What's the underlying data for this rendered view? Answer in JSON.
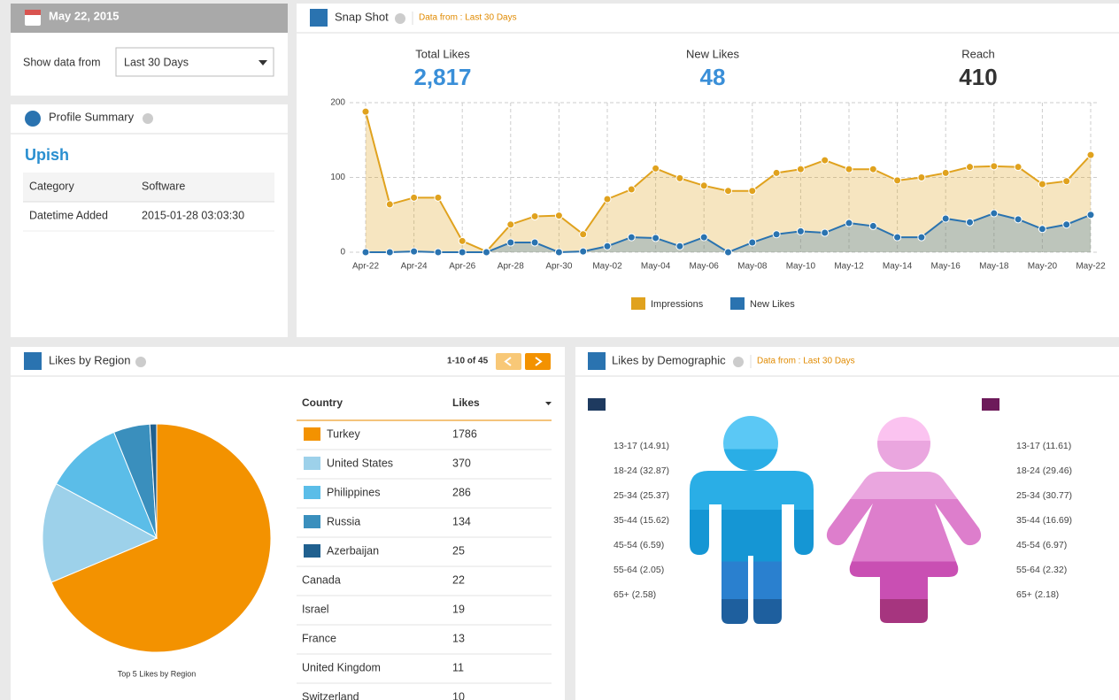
{
  "date_panel": {
    "date": "May 22, 2015",
    "label": "Show data from",
    "select": "Last 30 Days"
  },
  "profile": {
    "title": "Profile Summary",
    "name": "Upish",
    "rows": [
      [
        "Category",
        "Software"
      ],
      [
        "Datetime Added",
        "2015-01-28 03:03:30"
      ]
    ]
  },
  "snapshot": {
    "title": "Snap Shot",
    "note": "Data from : Last 30 Days",
    "stats": [
      {
        "label": "Total Likes",
        "value": "2,817"
      },
      {
        "label": "New Likes",
        "value": "48"
      },
      {
        "label": "Reach",
        "value": "410"
      }
    ],
    "chart_data": {
      "type": "line",
      "categories": [
        "Apr-22",
        null,
        "Apr-24",
        null,
        "Apr-26",
        null,
        "Apr-28",
        null,
        "Apr-30",
        null,
        "May-02",
        null,
        "May-04",
        null,
        "May-06",
        null,
        "May-08",
        null,
        "May-10",
        null,
        "May-12",
        null,
        "May-14",
        null,
        "May-16",
        null,
        "May-18",
        null,
        "May-20",
        null,
        "May-22"
      ],
      "series": [
        {
          "name": "Impressions",
          "color": "#e0a21e",
          "values": [
            188,
            64,
            73,
            73,
            15,
            1,
            37,
            48,
            49,
            24,
            71,
            84,
            112,
            99,
            89,
            82,
            82,
            106,
            111,
            123,
            111,
            111,
            96,
            100,
            106,
            114,
            115,
            114,
            91,
            95,
            130
          ]
        },
        {
          "name": "New Likes",
          "color": "#2a73b0",
          "values": [
            0,
            0,
            1,
            0,
            0,
            0,
            13,
            13,
            0,
            1,
            8,
            20,
            19,
            8,
            20,
            0,
            13,
            24,
            28,
            26,
            39,
            35,
            20,
            20,
            45,
            40,
            52,
            44,
            31,
            37,
            50
          ]
        }
      ],
      "ylim": [
        0,
        200
      ],
      "yticks": [
        0,
        100,
        200
      ],
      "grid": true,
      "legend": "bottom"
    }
  },
  "region": {
    "title": "Likes by Region",
    "pager": "1-10 of 45",
    "chart_data": {
      "type": "pie",
      "title": "Top 5 Likes by Region",
      "categories": [
        "Turkey",
        "United States",
        "Philippines",
        "Russia",
        "Azerbaijan"
      ],
      "values": [
        1786,
        370,
        286,
        134,
        25
      ],
      "colors": [
        "#f39200",
        "#9dd1ea",
        "#5bbde8",
        "#3a8fbd",
        "#20608f"
      ]
    },
    "table": {
      "headers": [
        "Country",
        "Likes"
      ],
      "rows": [
        [
          "Canada",
          22
        ],
        [
          "Israel",
          19
        ],
        [
          "France",
          13
        ],
        [
          "United Kingdom",
          11
        ],
        [
          "Switzerland",
          10
        ]
      ]
    }
  },
  "demographic": {
    "title": "Likes by Demographic",
    "note": "Data from : Last 30 Days",
    "male_color": "#1e3a5f",
    "female_color": "#6d1a5a",
    "male_labels": [
      "13-17 (14.91)",
      "18-24 (32.87)",
      "25-34 (25.37)",
      "35-44 (15.62)",
      "45-54 (6.59)",
      "55-64 (2.05)",
      "65+ (2.58)"
    ],
    "female_labels": [
      "13-17 (11.61)",
      "18-24 (29.46)",
      "25-34 (30.77)",
      "35-44 (16.69)",
      "45-54 (6.97)",
      "55-64 (2.32)",
      "65+ (2.18)"
    ]
  }
}
